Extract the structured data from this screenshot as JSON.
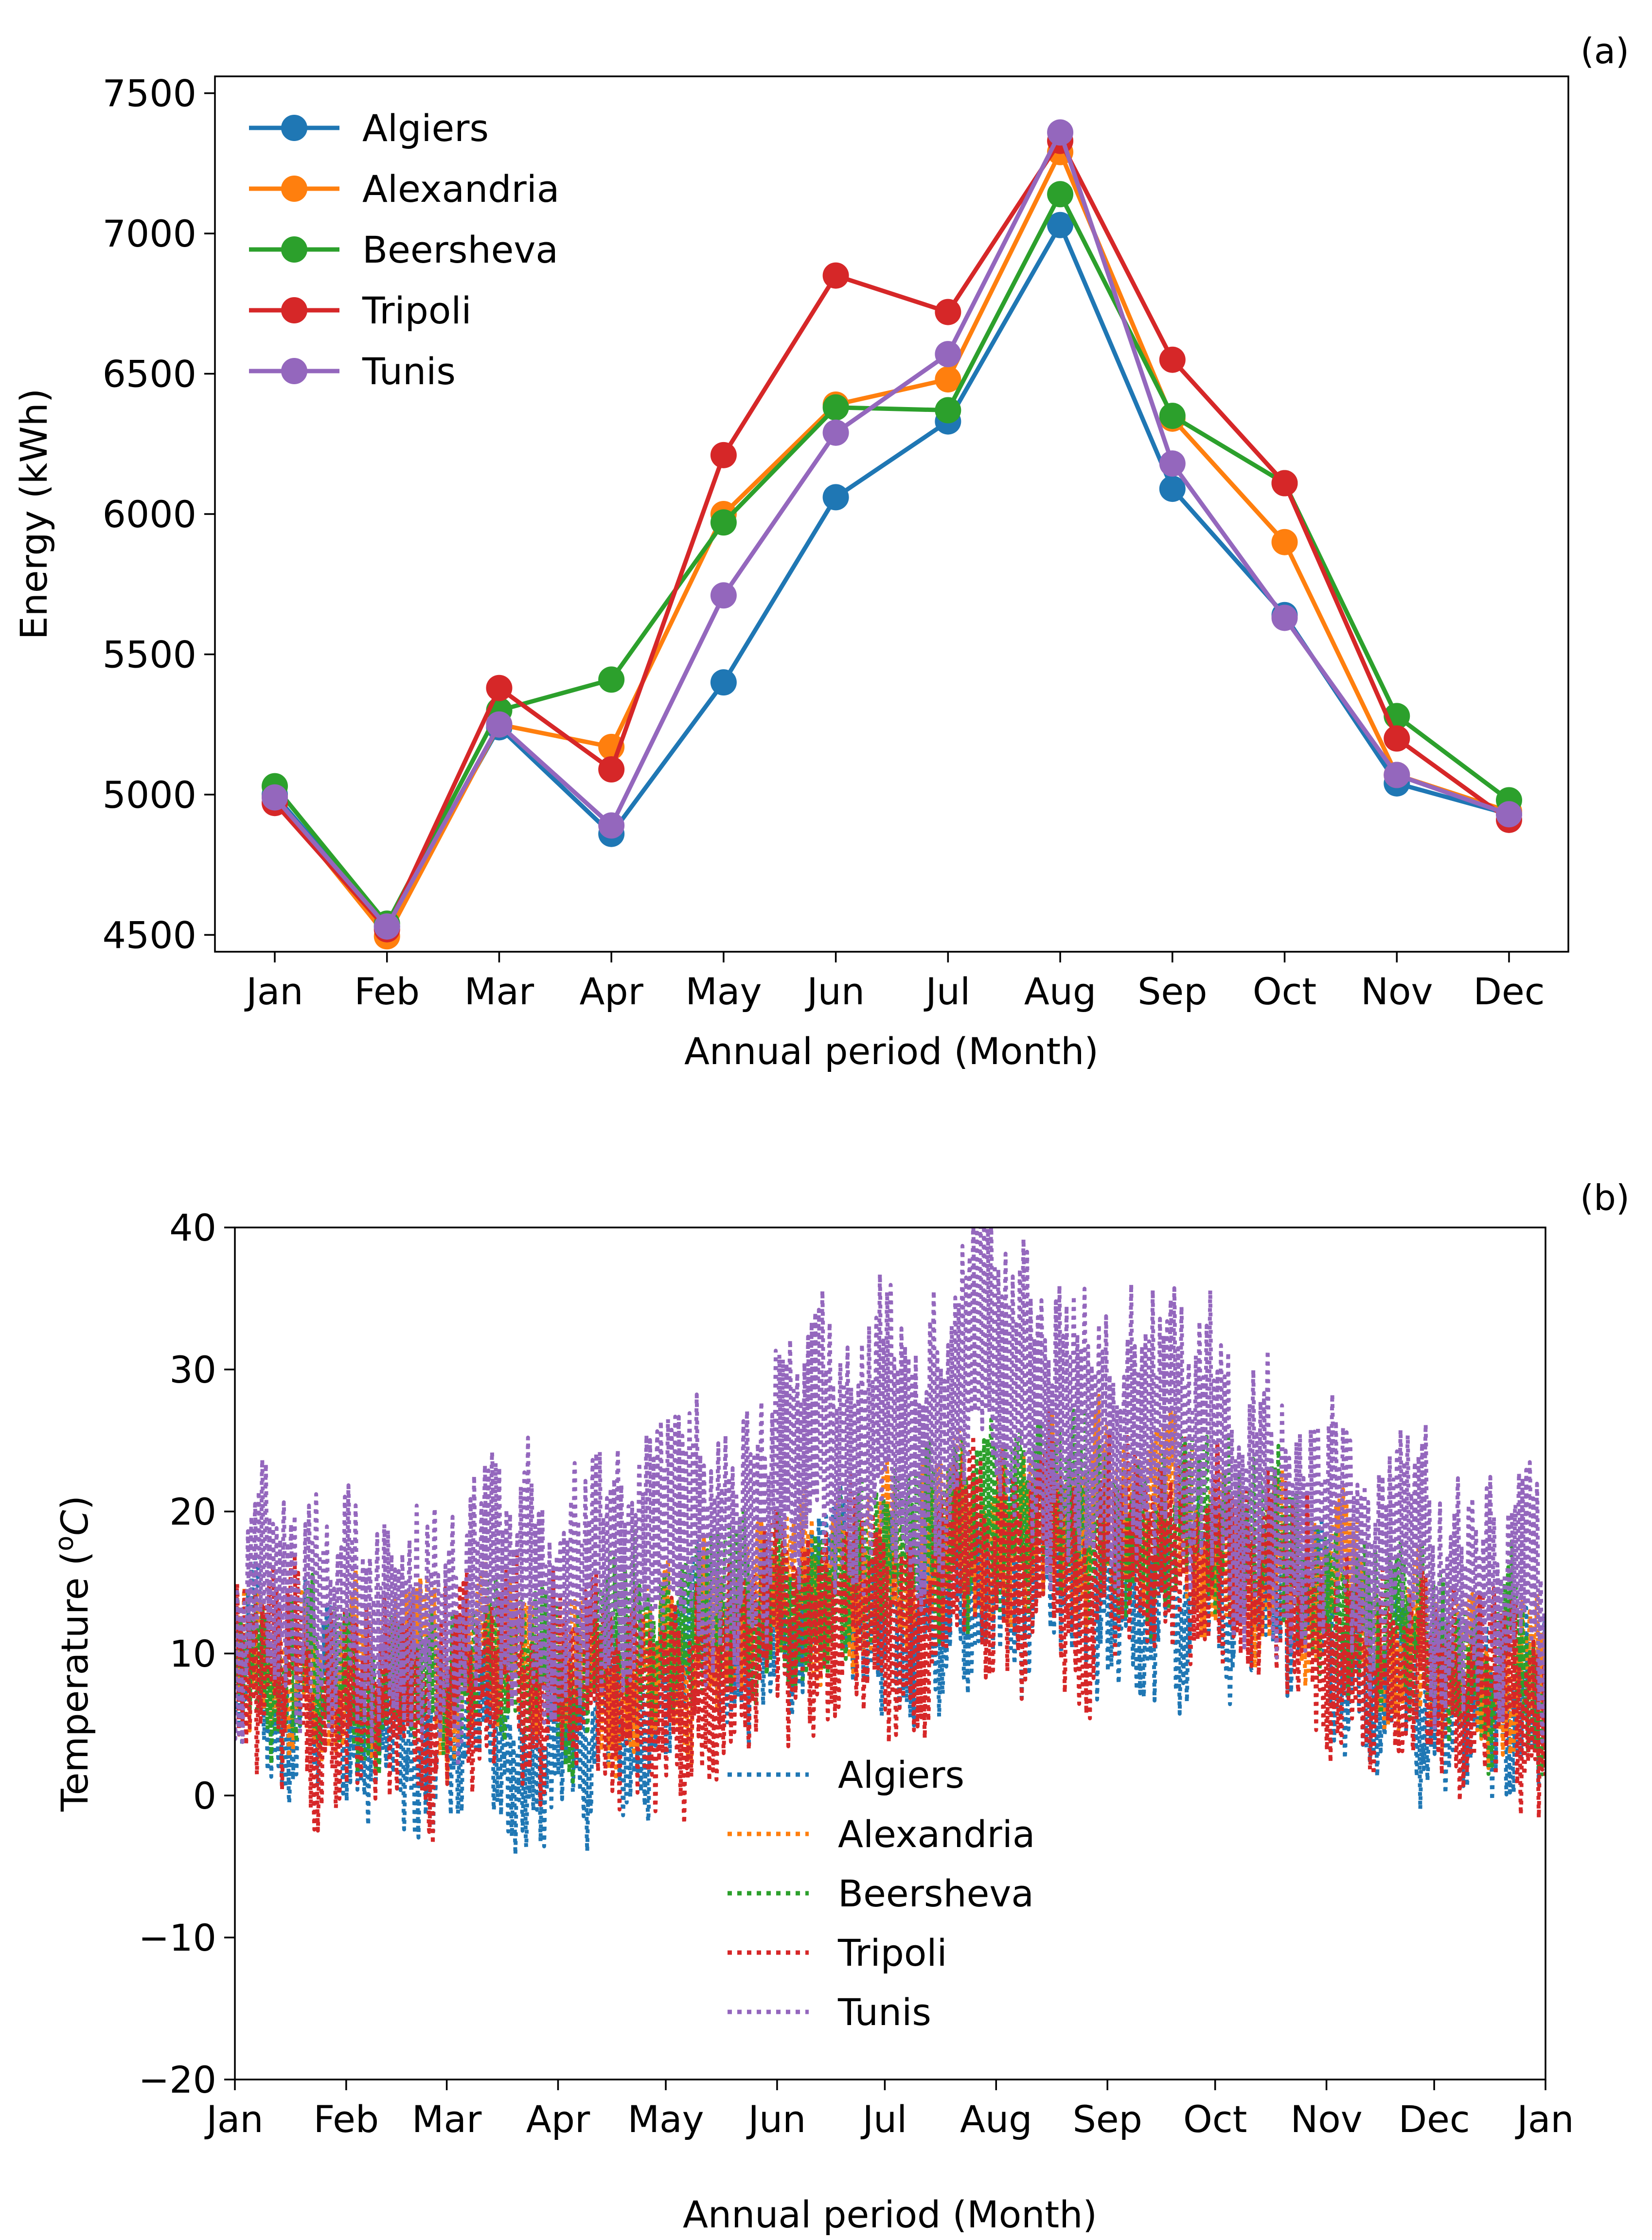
{
  "chart_data": [
    {
      "type": "line",
      "panel_label": "(a)",
      "xlabel": "Annual period (Month)",
      "ylabel": "Energy (kWh)",
      "ylim": [
        4440,
        7560
      ],
      "yticks": [
        4500,
        5000,
        5500,
        6000,
        6500,
        7000,
        7500
      ],
      "categories": [
        "Jan",
        "Feb",
        "Mar",
        "Apr",
        "May",
        "Jun",
        "Jul",
        "Aug",
        "Sep",
        "Oct",
        "Nov",
        "Dec"
      ],
      "legend_position": "upper-left",
      "series": [
        {
          "name": "Algiers",
          "color": "#1f77b4",
          "values": [
            5000,
            4530,
            5240,
            4860,
            5400,
            6060,
            6330,
            7030,
            6090,
            5640,
            5040,
            4930
          ]
        },
        {
          "name": "Alexandria",
          "color": "#ff7f0e",
          "values": [
            4990,
            4495,
            5250,
            5170,
            6000,
            6390,
            6480,
            7290,
            6340,
            5900,
            5070,
            4940
          ]
        },
        {
          "name": "Beersheva",
          "color": "#2ca02c",
          "values": [
            5030,
            4540,
            5300,
            5410,
            5970,
            6380,
            6370,
            7140,
            6350,
            6110,
            5280,
            4980
          ]
        },
        {
          "name": "Tripoli",
          "color": "#d62728",
          "values": [
            4970,
            4520,
            5380,
            5090,
            6210,
            6850,
            6720,
            7330,
            6550,
            6110,
            5200,
            4910
          ]
        },
        {
          "name": "Tunis",
          "color": "#9467bd",
          "values": [
            4990,
            4530,
            5250,
            4890,
            5710,
            6290,
            6570,
            7360,
            6180,
            5630,
            5070,
            4930
          ]
        }
      ]
    },
    {
      "type": "line",
      "panel_label": "(b)",
      "xlabel": "Annual period (Month)",
      "ylabel_prefix": "Temperature (",
      "ylabel_sup": "o",
      "ylabel_unit": "C",
      "ylabel_suffix": ")",
      "ylim": [
        -20,
        40
      ],
      "yticks": [
        "−20",
        "−10",
        "0",
        "10",
        "20",
        "30",
        "40"
      ],
      "xticks": [
        "Jan",
        "Feb",
        "Mar",
        "Apr",
        "May",
        "Jun",
        "Jul",
        "Aug",
        "Sep",
        "Oct",
        "Nov",
        "Dec",
        "Jan"
      ],
      "xlim_days": [
        0,
        365
      ],
      "line_style": "dotted",
      "legend_position": "lower-center",
      "series": [
        {
          "name": "Algiers",
          "color": "#1f77b4",
          "daily_means": [
            8,
            4,
            4,
            5,
            9,
            12,
            14,
            15,
            15,
            13,
            8,
            6
          ],
          "daily_amplitudes": [
            3.5,
            3.0,
            3.5,
            3.5,
            3.5,
            3.5,
            4,
            4,
            3.5,
            3.5,
            3.5,
            3.5
          ],
          "noise": 3.5
        },
        {
          "name": "Alexandria",
          "color": "#ff7f0e",
          "daily_means": [
            10,
            7,
            9,
            9,
            12,
            16,
            19,
            20,
            19,
            16,
            11,
            8
          ],
          "daily_amplitudes": [
            3,
            3,
            3,
            3,
            3.5,
            3.5,
            4,
            4,
            3.5,
            3.5,
            3,
            3
          ],
          "noise": 3
        },
        {
          "name": "Beersheva",
          "color": "#2ca02c",
          "daily_means": [
            9,
            7,
            9,
            10,
            13,
            16,
            18,
            20,
            19,
            16,
            12,
            9
          ],
          "daily_amplitudes": [
            3,
            3,
            3,
            3.5,
            3.5,
            3.5,
            4,
            4,
            3.5,
            3.5,
            3,
            3
          ],
          "noise": 3
        },
        {
          "name": "Tripoli",
          "color": "#d62728",
          "daily_means": [
            8,
            6,
            7,
            7,
            9,
            13,
            15,
            17,
            17,
            15,
            9,
            6
          ],
          "daily_amplitudes": [
            4,
            4,
            4,
            4.5,
            4.5,
            4.5,
            5,
            5,
            4.5,
            4.5,
            4,
            4
          ],
          "noise": 4
        },
        {
          "name": "Tunis",
          "color": "#9467bd",
          "daily_means": [
            12,
            12,
            14,
            15,
            18,
            23,
            27,
            29,
            25,
            21,
            16,
            13
          ],
          "daily_amplitudes": [
            5,
            5,
            5.5,
            6,
            6,
            6.5,
            7,
            7,
            6.5,
            6,
            5,
            5
          ],
          "noise": 4
        }
      ]
    }
  ]
}
